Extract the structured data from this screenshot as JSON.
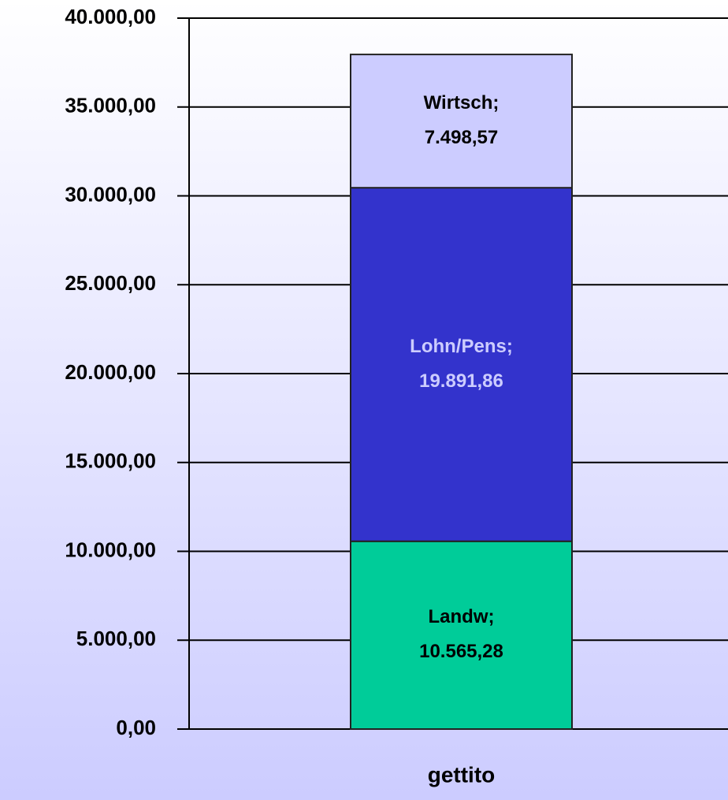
{
  "chart_data": {
    "type": "stacked_bar",
    "categories": [
      "gettito"
    ],
    "series": [
      {
        "name": "Landw;",
        "color": "#00cc99",
        "values": [
          10565.28
        ],
        "value_labels": [
          "10.565,28"
        ]
      },
      {
        "name": "Lohn/Pens;",
        "color": "#3333cc",
        "values": [
          19891.86
        ],
        "value_labels": [
          "19.891,86"
        ]
      },
      {
        "name": "Wirtsch;",
        "color": "#ccccff",
        "values": [
          7498.57
        ],
        "value_labels": [
          "7.498,57"
        ]
      }
    ],
    "ylim": [
      0,
      40000
    ],
    "yticks": [
      {
        "value": 0,
        "label": "0,00"
      },
      {
        "value": 5000,
        "label": "5.000,00"
      },
      {
        "value": 10000,
        "label": "10.000,00"
      },
      {
        "value": 15000,
        "label": "15.000,00"
      },
      {
        "value": 20000,
        "label": "20.000,00"
      },
      {
        "value": 25000,
        "label": "25.000,00"
      },
      {
        "value": 30000,
        "label": "30.000,00"
      },
      {
        "value": 35000,
        "label": "35.000,00"
      },
      {
        "value": 40000,
        "label": "40.000,00"
      }
    ],
    "grid": true
  }
}
